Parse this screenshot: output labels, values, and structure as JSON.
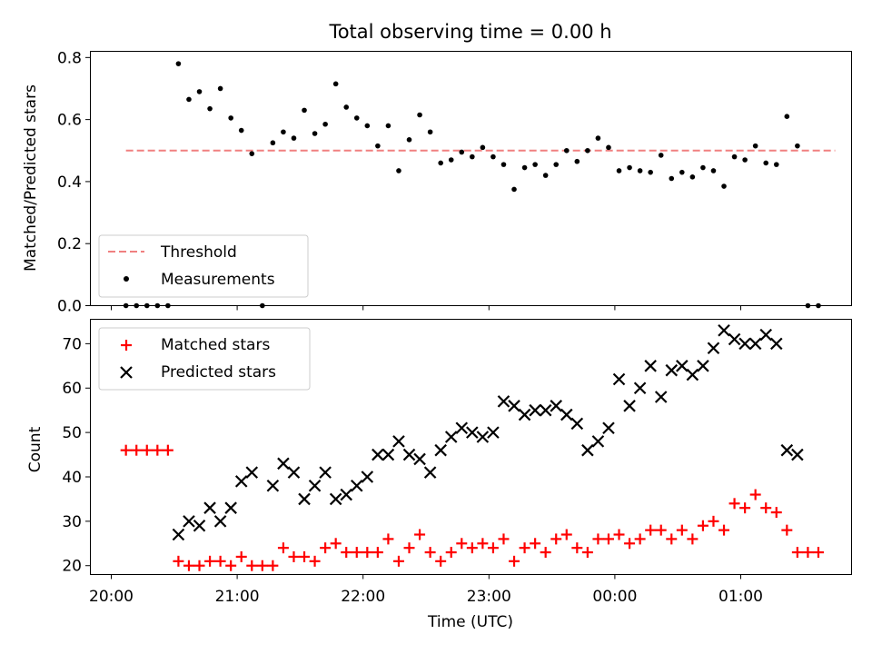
{
  "chart_data": [
    {
      "type": "scatter",
      "title": "Total observing time = 0.00 h",
      "ylabel": "Matched/Predicted stars",
      "xlabel": "",
      "ylim": [
        0,
        0.82
      ],
      "xlim": [
        "20:00",
        "02:00"
      ],
      "yticks": [
        "0.0",
        "0.2",
        "0.4",
        "0.6",
        "0.8"
      ],
      "grid": false,
      "legend_position": "lower-left",
      "colors": {
        "threshold": "#f08080",
        "measurements": "#000000"
      },
      "threshold": {
        "name": "Threshold",
        "value": 0.5,
        "x_range": [
          "20:07",
          "01:45"
        ]
      },
      "series": [
        {
          "name": "Measurements",
          "points": [
            [
              "20:07",
              0.0
            ],
            [
              "20:12",
              0.0
            ],
            [
              "20:17",
              0.0
            ],
            [
              "20:22",
              0.0
            ],
            [
              "20:27",
              0.0
            ],
            [
              "20:32",
              0.78
            ],
            [
              "20:37",
              0.665
            ],
            [
              "20:42",
              0.69
            ],
            [
              "20:47",
              0.635
            ],
            [
              "20:52",
              0.7
            ],
            [
              "20:57",
              0.605
            ],
            [
              "21:02",
              0.565
            ],
            [
              "21:07",
              0.49
            ],
            [
              "21:12",
              0.0
            ],
            [
              "21:17",
              0.525
            ],
            [
              "21:22",
              0.56
            ],
            [
              "21:27",
              0.54
            ],
            [
              "21:32",
              0.63
            ],
            [
              "21:37",
              0.555
            ],
            [
              "21:42",
              0.585
            ],
            [
              "21:47",
              0.715
            ],
            [
              "21:52",
              0.64
            ],
            [
              "21:57",
              0.605
            ],
            [
              "22:02",
              0.58
            ],
            [
              "22:07",
              0.515
            ],
            [
              "22:12",
              0.58
            ],
            [
              "22:17",
              0.435
            ],
            [
              "22:22",
              0.535
            ],
            [
              "22:27",
              0.615
            ],
            [
              "22:32",
              0.56
            ],
            [
              "22:37",
              0.46
            ],
            [
              "22:42",
              0.47
            ],
            [
              "22:47",
              0.495
            ],
            [
              "22:52",
              0.48
            ],
            [
              "22:57",
              0.51
            ],
            [
              "23:02",
              0.48
            ],
            [
              "23:07",
              0.455
            ],
            [
              "23:12",
              0.375
            ],
            [
              "23:17",
              0.445
            ],
            [
              "23:22",
              0.455
            ],
            [
              "23:27",
              0.42
            ],
            [
              "23:32",
              0.455
            ],
            [
              "23:37",
              0.5
            ],
            [
              "23:42",
              0.465
            ],
            [
              "23:47",
              0.5
            ],
            [
              "23:52",
              0.54
            ],
            [
              "23:57",
              0.51
            ],
            [
              "00:02",
              0.435
            ],
            [
              "00:07",
              0.445
            ],
            [
              "00:12",
              0.435
            ],
            [
              "00:17",
              0.43
            ],
            [
              "00:22",
              0.485
            ],
            [
              "00:27",
              0.41
            ],
            [
              "00:32",
              0.43
            ],
            [
              "00:37",
              0.415
            ],
            [
              "00:42",
              0.445
            ],
            [
              "00:47",
              0.435
            ],
            [
              "00:52",
              0.385
            ],
            [
              "00:57",
              0.48
            ],
            [
              "01:02",
              0.47
            ],
            [
              "01:07",
              0.515
            ],
            [
              "01:12",
              0.46
            ],
            [
              "01:17",
              0.455
            ],
            [
              "01:22",
              0.61
            ],
            [
              "01:27",
              0.515
            ],
            [
              "01:32",
              0.0
            ],
            [
              "01:37",
              0.0
            ]
          ]
        }
      ]
    },
    {
      "type": "scatter",
      "title": "",
      "ylabel": "Count",
      "xlabel": "Time (UTC)",
      "ylim": [
        18,
        75.5
      ],
      "xlim": [
        "20:00",
        "02:00"
      ],
      "yticks": [
        "20",
        "30",
        "40",
        "50",
        "60",
        "70"
      ],
      "xticks": [
        "20:00",
        "21:00",
        "22:00",
        "23:00",
        "00:00",
        "01:00"
      ],
      "grid": false,
      "legend_position": "top-left",
      "colors": {
        "matched": "#ff0000",
        "predicted": "#000000"
      },
      "series": [
        {
          "name": "Matched stars",
          "marker": "plus",
          "points": [
            [
              "20:07",
              46
            ],
            [
              "20:12",
              46
            ],
            [
              "20:17",
              46
            ],
            [
              "20:22",
              46
            ],
            [
              "20:27",
              46
            ],
            [
              "20:32",
              21
            ],
            [
              "20:37",
              20
            ],
            [
              "20:42",
              20
            ],
            [
              "20:47",
              21
            ],
            [
              "20:52",
              21
            ],
            [
              "20:57",
              20
            ],
            [
              "21:02",
              22
            ],
            [
              "21:07",
              20
            ],
            [
              "21:12",
              20
            ],
            [
              "21:17",
              20
            ],
            [
              "21:22",
              24
            ],
            [
              "21:27",
              22
            ],
            [
              "21:32",
              22
            ],
            [
              "21:37",
              21
            ],
            [
              "21:42",
              24
            ],
            [
              "21:47",
              25
            ],
            [
              "21:52",
              23
            ],
            [
              "21:57",
              23
            ],
            [
              "22:02",
              23
            ],
            [
              "22:07",
              23
            ],
            [
              "22:12",
              26
            ],
            [
              "22:17",
              21
            ],
            [
              "22:22",
              24
            ],
            [
              "22:27",
              27
            ],
            [
              "22:32",
              23
            ],
            [
              "22:37",
              21
            ],
            [
              "22:42",
              23
            ],
            [
              "22:47",
              25
            ],
            [
              "22:52",
              24
            ],
            [
              "22:57",
              25
            ],
            [
              "23:02",
              24
            ],
            [
              "23:07",
              26
            ],
            [
              "23:12",
              21
            ],
            [
              "23:17",
              24
            ],
            [
              "23:22",
              25
            ],
            [
              "23:27",
              23
            ],
            [
              "23:32",
              26
            ],
            [
              "23:37",
              27
            ],
            [
              "23:42",
              24
            ],
            [
              "23:47",
              23
            ],
            [
              "23:52",
              26
            ],
            [
              "23:57",
              26
            ],
            [
              "00:02",
              27
            ],
            [
              "00:07",
              25
            ],
            [
              "00:12",
              26
            ],
            [
              "00:17",
              28
            ],
            [
              "00:22",
              28
            ],
            [
              "00:27",
              26
            ],
            [
              "00:32",
              28
            ],
            [
              "00:37",
              26
            ],
            [
              "00:42",
              29
            ],
            [
              "00:47",
              30
            ],
            [
              "00:52",
              28
            ],
            [
              "00:57",
              34
            ],
            [
              "01:02",
              33
            ],
            [
              "01:07",
              36
            ],
            [
              "01:12",
              33
            ],
            [
              "01:17",
              32
            ],
            [
              "01:22",
              28
            ],
            [
              "01:27",
              23
            ],
            [
              "01:32",
              23
            ],
            [
              "01:37",
              23
            ]
          ]
        },
        {
          "name": "Predicted stars",
          "marker": "x",
          "points": [
            [
              "20:32",
              27
            ],
            [
              "20:37",
              30
            ],
            [
              "20:42",
              29
            ],
            [
              "20:47",
              33
            ],
            [
              "20:52",
              30
            ],
            [
              "20:57",
              33
            ],
            [
              "21:02",
              39
            ],
            [
              "21:07",
              41
            ],
            [
              "21:17",
              38
            ],
            [
              "21:22",
              43
            ],
            [
              "21:27",
              41
            ],
            [
              "21:32",
              35
            ],
            [
              "21:37",
              38
            ],
            [
              "21:42",
              41
            ],
            [
              "21:47",
              35
            ],
            [
              "21:52",
              36
            ],
            [
              "21:57",
              38
            ],
            [
              "22:02",
              40
            ],
            [
              "22:07",
              45
            ],
            [
              "22:12",
              45
            ],
            [
              "22:17",
              48
            ],
            [
              "22:22",
              45
            ],
            [
              "22:27",
              44
            ],
            [
              "22:32",
              41
            ],
            [
              "22:37",
              46
            ],
            [
              "22:42",
              49
            ],
            [
              "22:47",
              51
            ],
            [
              "22:52",
              50
            ],
            [
              "22:57",
              49
            ],
            [
              "23:02",
              50
            ],
            [
              "23:07",
              57
            ],
            [
              "23:12",
              56
            ],
            [
              "23:17",
              54
            ],
            [
              "23:22",
              55
            ],
            [
              "23:27",
              55
            ],
            [
              "23:32",
              56
            ],
            [
              "23:37",
              54
            ],
            [
              "23:42",
              52
            ],
            [
              "23:47",
              46
            ],
            [
              "23:52",
              48
            ],
            [
              "23:57",
              51
            ],
            [
              "00:02",
              62
            ],
            [
              "00:07",
              56
            ],
            [
              "00:12",
              60
            ],
            [
              "00:17",
              65
            ],
            [
              "00:22",
              58
            ],
            [
              "00:27",
              64
            ],
            [
              "00:32",
              65
            ],
            [
              "00:37",
              63
            ],
            [
              "00:42",
              65
            ],
            [
              "00:47",
              69
            ],
            [
              "00:52",
              73
            ],
            [
              "00:57",
              71
            ],
            [
              "01:02",
              70
            ],
            [
              "01:07",
              70
            ],
            [
              "01:12",
              72
            ],
            [
              "01:17",
              70
            ],
            [
              "01:22",
              46
            ],
            [
              "01:27",
              45
            ]
          ]
        }
      ]
    }
  ]
}
